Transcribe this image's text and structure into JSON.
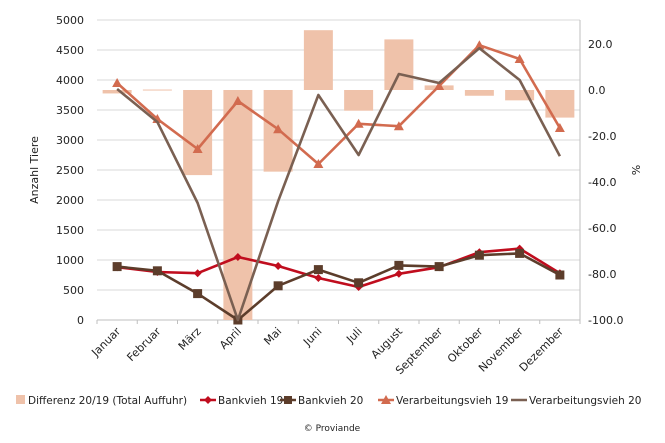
{
  "chart_data": {
    "type": "bar+line",
    "categories": [
      "Januar",
      "Februar",
      "März",
      "April",
      "Mai",
      "Juni",
      "Juli",
      "August",
      "September",
      "Oktober",
      "November",
      "Dezember"
    ],
    "ylabel": "Anzahl Tiere",
    "y2label": "%",
    "ylim": [
      0,
      5000
    ],
    "y2lim": [
      -100,
      30
    ],
    "yticks": [
      "0",
      "500",
      "1000",
      "1500",
      "2000",
      "2500",
      "3000",
      "3500",
      "4000",
      "4500",
      "5000"
    ],
    "y2ticks": [
      "-100.0",
      "-80.0",
      "-60.0",
      "-40.0",
      "-20.0",
      "0.0",
      "20.0"
    ],
    "grid": true,
    "legend_position": "bottom",
    "series": [
      {
        "name": "Differenz 20/19 (Total Auffuhr)",
        "type": "bar",
        "axis": "right",
        "color": "#efc2aa",
        "values": [
          -1.5,
          0.2,
          -37,
          -100,
          -35.5,
          26,
          -9,
          22,
          2,
          -2.5,
          -4.5,
          -12
        ]
      },
      {
        "name": "Bankvieh 19",
        "type": "line",
        "marker": "diamond",
        "axis": "left",
        "color": "#c00d1e",
        "values": [
          880,
          800,
          780,
          1050,
          900,
          700,
          550,
          770,
          880,
          1130,
          1190,
          780
        ]
      },
      {
        "name": "Bankvieh 20",
        "type": "line",
        "marker": "square",
        "axis": "left",
        "color": "#5c3d2b",
        "values": [
          890,
          820,
          440,
          0,
          570,
          840,
          620,
          910,
          890,
          1080,
          1110,
          750
        ]
      },
      {
        "name": "Verarbeitungsvieh 19",
        "type": "line",
        "marker": "triangle",
        "axis": "left",
        "color": "#d26b4f",
        "values": [
          3950,
          3350,
          2850,
          3650,
          3180,
          2600,
          3270,
          3230,
          3900,
          4580,
          4350,
          3200
        ]
      },
      {
        "name": "Verarbeitungsvieh 20",
        "type": "line",
        "marker": "none",
        "axis": "left",
        "color": "#7a6052",
        "values": [
          3850,
          3300,
          1950,
          0,
          1980,
          3750,
          2750,
          4100,
          3950,
          4530,
          4000,
          2730
        ]
      }
    ]
  },
  "footer": "© Proviande"
}
